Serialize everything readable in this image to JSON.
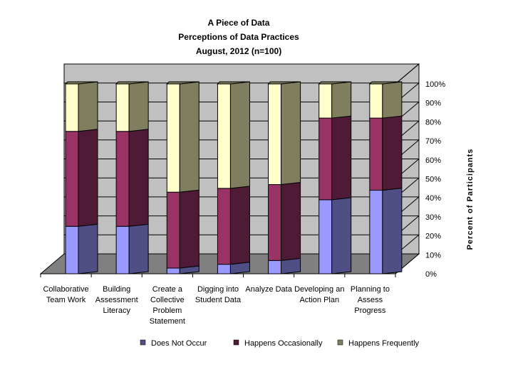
{
  "chart_data": {
    "type": "bar",
    "stacked": true,
    "title": [
      "A Piece of Data",
      "Perceptions of Data Practices",
      "August, 2012 (n=100)"
    ],
    "xlabel": "",
    "ylabel": "Percent of Participants",
    "ylim": [
      0,
      100
    ],
    "yticks": [
      "0%",
      "10%",
      "20%",
      "30%",
      "40%",
      "50%",
      "60%",
      "70%",
      "80%",
      "90%",
      "100%"
    ],
    "categories": [
      [
        "Collaborative",
        "Team Work"
      ],
      [
        "Building",
        "Assessment",
        "Literacy"
      ],
      [
        "Create a",
        "Collective",
        "Problem",
        "Statement"
      ],
      [
        "Digging into",
        "Student Data"
      ],
      [
        "Analyze Data"
      ],
      [
        "Developing an",
        "Action Plan"
      ],
      [
        "Planning to",
        "Assess",
        "Progress"
      ]
    ],
    "series": [
      {
        "name": "Does Not Occur",
        "values": [
          25,
          25,
          3,
          5,
          7,
          39,
          44
        ]
      },
      {
        "name": "Happens Occasionally",
        "values": [
          50,
          50,
          40,
          40,
          40,
          43,
          38
        ]
      },
      {
        "name": "Happens Frequently",
        "values": [
          25,
          25,
          57,
          55,
          53,
          18,
          18
        ]
      }
    ],
    "legend_position": "bottom",
    "colors": {
      "series_front": [
        "#9999ff",
        "#993366",
        "#ffffcc"
      ],
      "series_side": [
        "#4f4f86",
        "#4f1a35",
        "#7f7f5f"
      ],
      "wall": "#c0c0c0",
      "floor": "#808080"
    }
  }
}
